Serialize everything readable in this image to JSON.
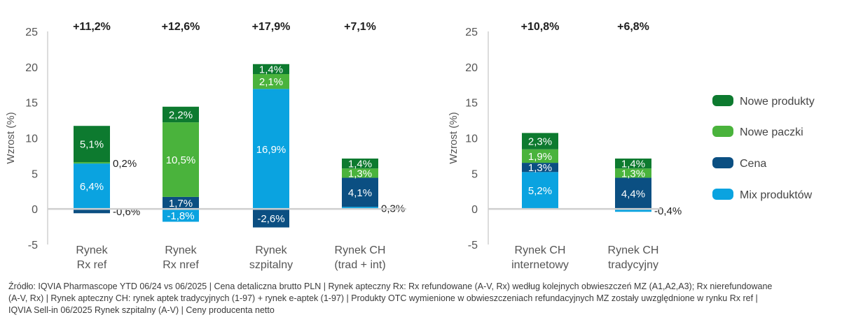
{
  "colors": {
    "nowe_produkty": "#0d7a2f",
    "nowe_paczki": "#4ab33c",
    "cena": "#0b4f82",
    "mix_produktow": "#0aa3e0",
    "axis": "#cccccc"
  },
  "legend": [
    {
      "name": "Nowe produkty",
      "color": "#0d7a2f"
    },
    {
      "name": "Nowe paczki",
      "color": "#4ab33c"
    },
    {
      "name": "Cena",
      "color": "#0b4f82"
    },
    {
      "name": "Mix produktów",
      "color": "#0aa3e0"
    }
  ],
  "chart_data": [
    {
      "type": "bar",
      "stacked": true,
      "ylabel": "Wzrost (%)",
      "ylim": [
        -5,
        25
      ],
      "yticks": [
        "25",
        "20",
        "15",
        "10",
        "5",
        "0",
        "-5"
      ],
      "categories": [
        {
          "lines": [
            "Rynek",
            "Rx ref"
          ],
          "total": "+11,2%"
        },
        {
          "lines": [
            "Rynek",
            "Rx nref"
          ],
          "total": "+12,6%"
        },
        {
          "lines": [
            "Rynek",
            "szpitalny"
          ],
          "total": "+17,9%"
        },
        {
          "lines": [
            "Rynek CH",
            "(trad + int)"
          ],
          "total": "+7,1%"
        }
      ],
      "series": [
        {
          "name": "Mix produktów",
          "values": [
            6.4,
            -1.8,
            16.9,
            0.3
          ],
          "labels": [
            "6,4%",
            "-1,8%",
            "16,9%",
            "0,3%"
          ]
        },
        {
          "name": "Cena",
          "values": [
            -0.6,
            1.7,
            -2.6,
            4.1
          ],
          "labels": [
            "-0,6%",
            "1,7%",
            "-2,6%",
            "4,1%"
          ]
        },
        {
          "name": "Nowe paczki",
          "values": [
            0.2,
            10.5,
            2.1,
            1.3
          ],
          "labels": [
            "0,2%",
            "10,5%",
            "2,1%",
            "1,3%"
          ]
        },
        {
          "name": "Nowe produkty",
          "values": [
            5.1,
            2.2,
            1.4,
            1.4
          ],
          "labels": [
            "5,1%",
            "2,2%",
            "1,4%",
            "1,4%"
          ]
        }
      ]
    },
    {
      "type": "bar",
      "stacked": true,
      "ylabel": "Wzrost (%)",
      "ylim": [
        -5,
        25
      ],
      "yticks": [
        "25",
        "20",
        "15",
        "10",
        "5",
        "0",
        "-5"
      ],
      "categories": [
        {
          "lines": [
            "Rynek CH",
            "internetowy"
          ],
          "total": "+10,8%"
        },
        {
          "lines": [
            "Rynek CH",
            "tradycyjny"
          ],
          "total": "+6,8%"
        }
      ],
      "series": [
        {
          "name": "Mix produktów",
          "values": [
            5.2,
            -0.4
          ],
          "labels": [
            "5,2%",
            "-0,4%"
          ]
        },
        {
          "name": "Cena",
          "values": [
            1.3,
            4.4
          ],
          "labels": [
            "1,3%",
            "4,4%"
          ]
        },
        {
          "name": "Nowe paczki",
          "values": [
            1.9,
            1.3
          ],
          "labels": [
            "1,9%",
            "1,3%"
          ]
        },
        {
          "name": "Nowe produkty",
          "values": [
            2.3,
            1.4
          ],
          "labels": [
            "2,3%",
            "1,4%"
          ]
        }
      ]
    }
  ],
  "footnote": [
    "Źródło: IQVIA Pharmascope YTD 06/24 vs 06/2025 | Cena detaliczna brutto PLN | Rynek apteczny Rx: Rx refundowane  (A-V, Rx) według kolejnych obwieszczeń MZ (A1,A2,A3); Rx nierefundowane",
    "(A-V, Rx) | Rynek apteczny CH: rynek aptek tradycyjnych (1-97) + rynek e-aptek (1-97) | Produkty OTC wymienione w obwieszczeniach refundacyjnych MZ zostały uwzględnione w rynku Rx ref |",
    "IQVIA Sell-in 06/2025 Rynek szpitalny (A-V) | Ceny producenta netto"
  ]
}
